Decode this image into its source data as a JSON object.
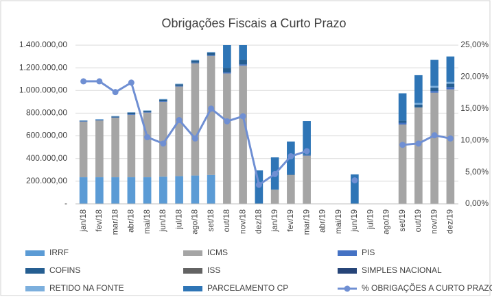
{
  "chart_data": {
    "type": "bar",
    "title": "Obrigações Fiscais  a Curto Prazo",
    "categories": [
      "jan/18",
      "fev/18",
      "mar/18",
      "abr/18",
      "mai/18",
      "jun/18",
      "jul/18",
      "ago/18",
      "set/18",
      "out/18",
      "nov/18",
      "dez/18",
      "jan/19",
      "fev/19",
      "mar/19",
      "abr/19",
      "mai/19",
      "jun/19",
      "jul/19",
      "ago/19",
      "set/19",
      "out/19",
      "nov/19",
      "dez/19"
    ],
    "series": [
      {
        "name": "IRRF",
        "color": "#5b9bd5",
        "values": [
          235000,
          235000,
          235000,
          235000,
          235000,
          240000,
          245000,
          250000,
          255000,
          0,
          0,
          0,
          0,
          0,
          0,
          0,
          0,
          0,
          0,
          0,
          0,
          0,
          0,
          0
        ]
      },
      {
        "name": "ICMS",
        "color": "#a5a5a5",
        "values": [
          490000,
          500000,
          525000,
          550000,
          570000,
          660000,
          790000,
          990000,
          1050000,
          1150000,
          1220000,
          0,
          125000,
          255000,
          425000,
          0,
          0,
          0,
          0,
          0,
          700000,
          850000,
          980000,
          1010000
        ]
      },
      {
        "name": "PIS",
        "color": "#4472c4",
        "values": [
          3000,
          3000,
          3000,
          5000,
          5000,
          5000,
          5000,
          5000,
          5000,
          10000,
          10000,
          0,
          0,
          0,
          5000,
          0,
          0,
          0,
          0,
          0,
          15000,
          0,
          15000,
          20000
        ]
      },
      {
        "name": "COFINS",
        "color": "#255e91",
        "values": [
          5000,
          5000,
          8000,
          15000,
          12000,
          15000,
          15000,
          20000,
          25000,
          40000,
          40000,
          0,
          0,
          5000,
          5000,
          0,
          0,
          0,
          0,
          0,
          20000,
          25000,
          30000,
          30000
        ]
      },
      {
        "name": "ISS",
        "color": "#636363",
        "values": [
          0,
          0,
          0,
          0,
          0,
          0,
          0,
          0,
          0,
          0,
          0,
          0,
          0,
          0,
          0,
          0,
          0,
          0,
          0,
          0,
          0,
          0,
          0,
          0
        ]
      },
      {
        "name": "SIMPLES NACIONAL",
        "color": "#264478",
        "values": [
          0,
          0,
          0,
          0,
          0,
          0,
          0,
          0,
          0,
          0,
          0,
          0,
          0,
          0,
          0,
          0,
          0,
          0,
          0,
          0,
          0,
          0,
          0,
          0
        ]
      },
      {
        "name": "RETIDO NA FONTE",
        "color": "#7cafdd",
        "values": [
          3000,
          5000,
          4000,
          3000,
          3000,
          5000,
          5000,
          5000,
          5000,
          0,
          0,
          0,
          0,
          0,
          0,
          0,
          0,
          0,
          0,
          0,
          0,
          15000,
          15000,
          15000
        ]
      },
      {
        "name": "PARCELAMENTO CP",
        "color": "#2e75b6",
        "values": [
          0,
          0,
          0,
          0,
          0,
          0,
          0,
          0,
          0,
          220000,
          200000,
          295000,
          285000,
          290000,
          295000,
          0,
          0,
          260000,
          0,
          0,
          240000,
          245000,
          230000,
          225000
        ]
      },
      {
        "name": "% OBRIGAÇÕES A CURTO PRAZO",
        "color": "#6f8fd3",
        "axis": "y2",
        "type": "line",
        "values": [
          19.3,
          19.3,
          17.6,
          19.1,
          10.5,
          9.5,
          13.2,
          10.3,
          15.0,
          13.0,
          13.8,
          3.0,
          4.7,
          7.5,
          8.3,
          null,
          null,
          3.7,
          null,
          null,
          9.3,
          9.5,
          10.8,
          10.3
        ]
      }
    ],
    "ylim": [
      0,
      1400000
    ],
    "yticks": [
      {
        "value": 0,
        "label": "-"
      },
      {
        "value": 200000,
        "label": "200.000,00"
      },
      {
        "value": 400000,
        "label": "400.000,00"
      },
      {
        "value": 600000,
        "label": "600.000,00"
      },
      {
        "value": 800000,
        "label": "800.000,00"
      },
      {
        "value": 1000000,
        "label": "1.000.000,00"
      },
      {
        "value": 1200000,
        "label": "1.200.000,00"
      },
      {
        "value": 1400000,
        "label": "1.400.000,00"
      }
    ],
    "y2lim": [
      0,
      25
    ],
    "y2ticks": [
      {
        "value": 0,
        "label": "0,00%"
      },
      {
        "value": 5,
        "label": "5,00%"
      },
      {
        "value": 10,
        "label": "10,00%"
      },
      {
        "value": 15,
        "label": "15,00%"
      },
      {
        "value": 20,
        "label": "20,00%"
      },
      {
        "value": 25,
        "label": "25,00%"
      }
    ],
    "legend": "bottom"
  }
}
